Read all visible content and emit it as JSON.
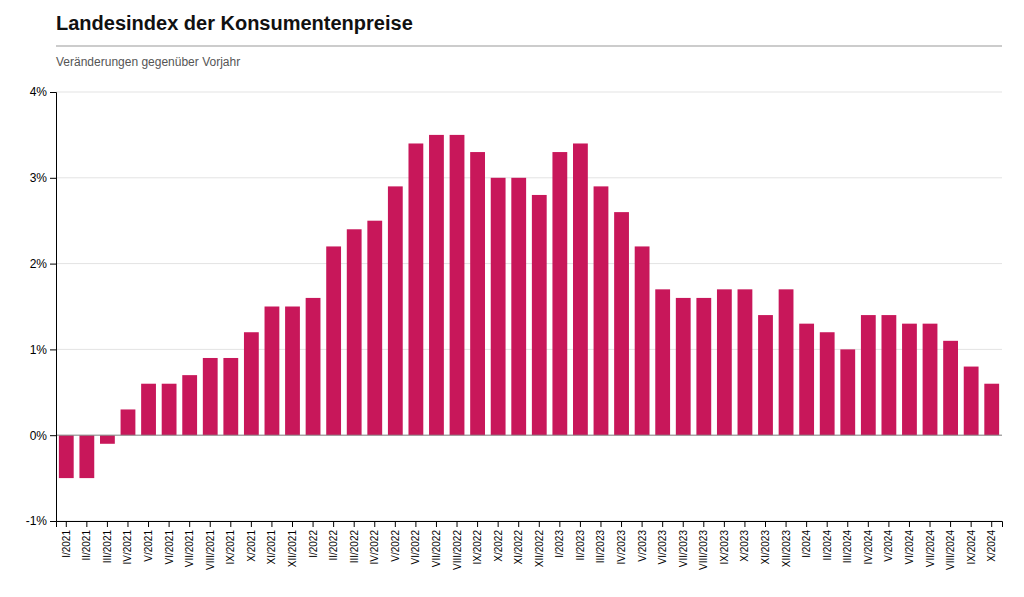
{
  "chart_data": {
    "type": "bar",
    "title": "Landesindex der Konsumentenpreise",
    "subtitle": "Veränderungen gegenüber Vorjahr",
    "categories": [
      "I/2021",
      "II/2021",
      "III/2021",
      "IV/2021",
      "V/2021",
      "VI/2021",
      "VII/2021",
      "VIII/2021",
      "IX/2021",
      "X/2021",
      "XI/2021",
      "XII/2021",
      "I/2022",
      "II/2022",
      "III/2022",
      "IV/2022",
      "V/2022",
      "VI/2022",
      "VII/2022",
      "VIII/2022",
      "IX/2022",
      "X/2022",
      "XI/2022",
      "XII/2022",
      "I/2023",
      "II/2023",
      "III/2023",
      "IV/2023",
      "V/2023",
      "VI/2023",
      "VII/2023",
      "VIII/2023",
      "IX/2023",
      "X/2023",
      "XI/2023",
      "XII/2023",
      "I/2024",
      "II/2024",
      "III/2024",
      "IV/2024",
      "V/2024",
      "VI/2024",
      "VII/2024",
      "VIII/2024",
      "IX/2024",
      "X/2024"
    ],
    "values": [
      -0.5,
      -0.5,
      -0.1,
      0.3,
      0.6,
      0.6,
      0.7,
      0.9,
      0.9,
      1.2,
      1.5,
      1.5,
      1.6,
      2.2,
      2.4,
      2.5,
      2.9,
      3.4,
      3.5,
      3.5,
      3.3,
      3.0,
      3.0,
      2.8,
      3.3,
      3.4,
      2.9,
      2.6,
      2.2,
      1.7,
      1.6,
      1.6,
      1.7,
      1.7,
      1.4,
      1.7,
      1.3,
      1.2,
      1.0,
      1.4,
      1.4,
      1.3,
      1.3,
      1.1,
      0.8,
      0.6
    ],
    "color": "#C8175A",
    "ylim": [
      -1.0,
      4.0
    ],
    "yticks": [
      {
        "value": -1.0,
        "label": "-1%"
      },
      {
        "value": 0.0,
        "label": "0%"
      },
      {
        "value": 1.0,
        "label": "1%"
      },
      {
        "value": 2.0,
        "label": "2%"
      },
      {
        "value": 3.0,
        "label": "3%"
      },
      {
        "value": 4.0,
        "label": "4%"
      }
    ],
    "grid": true
  }
}
